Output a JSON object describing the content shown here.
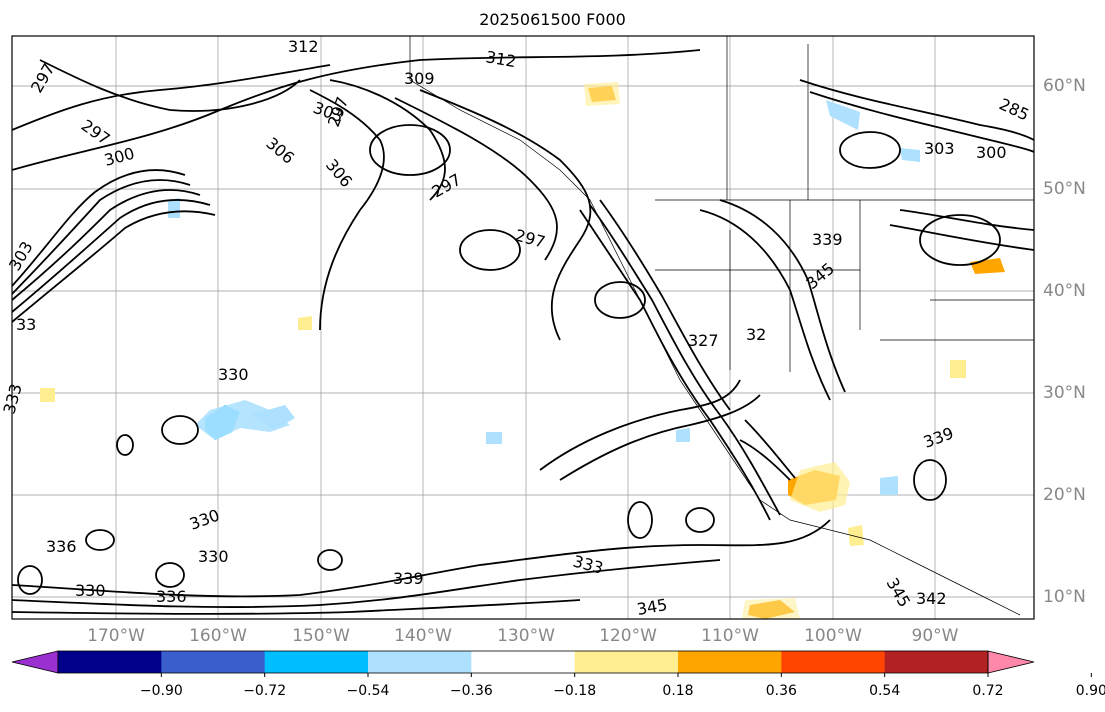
{
  "title": "2025061500 F000",
  "lon_labels": [
    "170°W",
    "160°W",
    "150°W",
    "140°W",
    "130°W",
    "120°W",
    "110°W",
    "100°W",
    "90°W"
  ],
  "lat_labels": [
    "60°N",
    "50°N",
    "40°N",
    "30°N",
    "20°N",
    "10°N"
  ],
  "colorbar": {
    "colors": [
      "#9b30d0",
      "#00008b",
      "#3a5fcd",
      "#00bfff",
      "#ade1ff",
      "#ffffff",
      "#ffee90",
      "#ffa500",
      "#ff4500",
      "#b22222",
      "#ff88aa"
    ],
    "tick_labels": [
      "−0.90",
      "−0.72",
      "−0.54",
      "−0.36",
      "−0.18",
      "0.18",
      "0.36",
      "0.54",
      "0.72",
      "0.90"
    ]
  },
  "contour_labels": [
    "312",
    "312",
    "309",
    "297",
    "297",
    "303",
    "297",
    "306",
    "306",
    "300",
    "297",
    "303",
    "297",
    "285",
    "303",
    "300",
    "327",
    "32",
    "339",
    "345",
    "330",
    "333",
    "330",
    "330",
    "336",
    "336",
    "330",
    "333",
    "345",
    "339",
    "342",
    "345",
    "339",
    "33"
  ]
}
